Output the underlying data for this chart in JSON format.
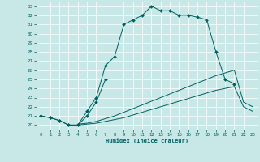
{
  "xlabel": "Humidex (Indice chaleur)",
  "background_color": "#c8e8e8",
  "grid_color": "#aacccc",
  "line_color": "#006060",
  "xlim": [
    -0.5,
    23.5
  ],
  "ylim": [
    19.5,
    33.5
  ],
  "xticks": [
    0,
    1,
    2,
    3,
    4,
    5,
    6,
    7,
    8,
    9,
    10,
    11,
    12,
    13,
    14,
    15,
    16,
    17,
    18,
    19,
    20,
    21,
    22,
    23
  ],
  "yticks": [
    20,
    21,
    22,
    23,
    24,
    25,
    26,
    27,
    28,
    29,
    30,
    31,
    32,
    33
  ],
  "curve1_x": [
    0,
    1,
    2,
    3,
    4,
    5,
    6,
    7,
    8,
    9,
    10,
    11,
    12,
    13,
    14,
    15,
    16,
    17,
    18,
    19,
    20,
    21
  ],
  "curve1_y": [
    21.0,
    20.8,
    20.5,
    20.0,
    20.0,
    21.5,
    23.0,
    26.5,
    27.5,
    31.0,
    31.5,
    32.0,
    33.0,
    32.5,
    32.5,
    32.0,
    32.0,
    31.8,
    31.5,
    28.0,
    25.0,
    24.5
  ],
  "curve2_x": [
    0,
    1,
    2,
    3,
    4,
    5,
    6,
    7
  ],
  "curve2_y": [
    21.0,
    20.8,
    20.5,
    20.0,
    20.0,
    21.0,
    22.5,
    25.0
  ],
  "curve3_x": [
    4,
    5,
    6,
    7,
    8,
    9,
    10,
    11,
    12,
    13,
    14,
    15,
    16,
    17,
    18,
    19,
    20,
    21,
    22,
    23
  ],
  "curve3_y": [
    20.1,
    20.2,
    20.4,
    20.7,
    21.0,
    21.4,
    21.8,
    22.2,
    22.6,
    23.0,
    23.4,
    23.8,
    24.2,
    24.6,
    25.0,
    25.4,
    25.7,
    26.0,
    22.5,
    22.0
  ],
  "curve4_x": [
    4,
    5,
    6,
    7,
    8,
    9,
    10,
    11,
    12,
    13,
    14,
    15,
    16,
    17,
    18,
    19,
    20,
    21,
    22,
    23
  ],
  "curve4_y": [
    20.0,
    20.1,
    20.2,
    20.4,
    20.6,
    20.8,
    21.1,
    21.4,
    21.7,
    22.0,
    22.3,
    22.6,
    22.9,
    23.2,
    23.5,
    23.8,
    24.0,
    24.2,
    22.0,
    21.5
  ]
}
